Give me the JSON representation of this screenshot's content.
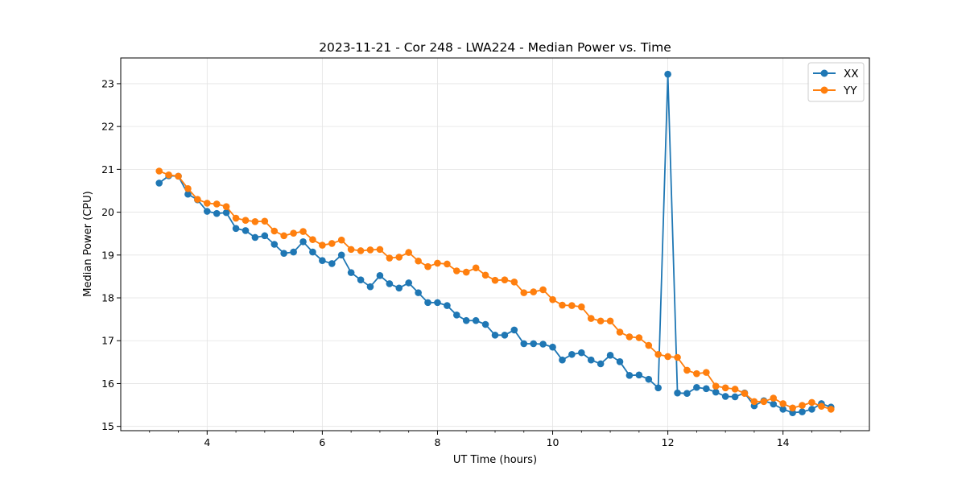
{
  "chart_data": {
    "type": "line",
    "title": "2023-11-21 - Cor 248 - LWA224 - Median Power vs. Time",
    "xlabel": "UT Time (hours)",
    "ylabel": "Median Power (CPU)",
    "xlim": [
      2.5,
      15.5
    ],
    "ylim": [
      14.9,
      23.6
    ],
    "xticks": [
      4,
      6,
      8,
      10,
      12,
      14
    ],
    "xtick_labels": [
      "4",
      "6",
      "8",
      "10",
      "12",
      "14"
    ],
    "yticks": [
      15,
      16,
      17,
      18,
      19,
      20,
      21,
      22,
      23
    ],
    "ytick_labels": [
      "15",
      "16",
      "17",
      "18",
      "19",
      "20",
      "21",
      "22",
      "23"
    ],
    "grid": true,
    "legend_position": "top-right",
    "x": [
      3.167,
      3.333,
      3.5,
      3.667,
      3.833,
      4.0,
      4.167,
      4.333,
      4.5,
      4.667,
      4.833,
      5.0,
      5.167,
      5.333,
      5.5,
      5.667,
      5.833,
      6.0,
      6.167,
      6.333,
      6.5,
      6.667,
      6.833,
      7.0,
      7.167,
      7.333,
      7.5,
      7.667,
      7.833,
      8.0,
      8.167,
      8.333,
      8.5,
      8.667,
      8.833,
      9.0,
      9.167,
      9.333,
      9.5,
      9.667,
      9.833,
      10.0,
      10.167,
      10.333,
      10.5,
      10.667,
      10.833,
      11.0,
      11.167,
      11.333,
      11.5,
      11.667,
      11.833,
      12.0,
      12.167,
      12.333,
      12.5,
      12.667,
      12.833,
      13.0,
      13.167,
      13.333,
      13.5,
      13.667,
      13.833,
      14.0,
      14.167,
      14.333,
      14.5,
      14.667,
      14.833
    ],
    "series": [
      {
        "name": "XX",
        "color": "#1f77b4",
        "values": [
          20.68,
          20.85,
          20.84,
          20.42,
          20.29,
          20.02,
          19.97,
          19.99,
          19.62,
          19.57,
          19.41,
          19.45,
          19.25,
          19.04,
          19.07,
          19.31,
          19.07,
          18.87,
          18.8,
          19.0,
          18.59,
          18.42,
          18.26,
          18.52,
          18.33,
          18.23,
          18.35,
          18.12,
          17.89,
          17.89,
          17.82,
          17.6,
          17.47,
          17.47,
          17.38,
          17.13,
          17.13,
          17.25,
          16.93,
          16.93,
          16.92,
          16.85,
          16.55,
          16.68,
          16.72,
          16.55,
          16.46,
          16.66,
          16.51,
          16.19,
          16.2,
          16.1,
          15.9,
          23.22,
          15.78,
          15.77,
          15.91,
          15.88,
          15.8,
          15.7,
          15.69,
          15.78,
          15.48,
          15.6,
          15.52,
          15.4,
          15.32,
          15.34,
          15.4,
          15.53,
          15.45
        ]
      },
      {
        "name": "YY",
        "color": "#ff7f0e",
        "values": [
          20.96,
          20.87,
          20.84,
          20.55,
          20.3,
          20.21,
          20.19,
          20.13,
          19.86,
          19.81,
          19.78,
          19.79,
          19.56,
          19.45,
          19.51,
          19.55,
          19.36,
          19.23,
          19.27,
          19.35,
          19.13,
          19.1,
          19.12,
          19.13,
          18.93,
          18.95,
          19.06,
          18.86,
          18.73,
          18.81,
          18.79,
          18.63,
          18.6,
          18.7,
          18.53,
          18.41,
          18.42,
          18.37,
          18.12,
          18.14,
          18.19,
          17.96,
          17.83,
          17.82,
          17.79,
          17.52,
          17.46,
          17.46,
          17.2,
          17.09,
          17.07,
          16.89,
          16.68,
          16.63,
          16.61,
          16.31,
          16.23,
          16.26,
          15.94,
          15.9,
          15.87,
          15.77,
          15.58,
          15.58,
          15.66,
          15.53,
          15.43,
          15.49,
          15.56,
          15.47,
          15.4
        ]
      }
    ]
  }
}
